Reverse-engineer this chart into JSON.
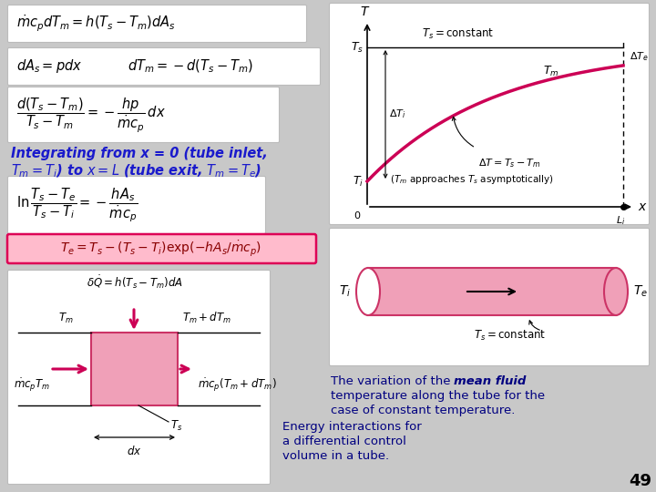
{
  "bg_color": "#c8c8c8",
  "white_box_color": "#ffffff",
  "blue_text_color": "#1a1acc",
  "dark_blue_color": "#000080",
  "pink_curve_color": "#cc0055",
  "highlight_box_facecolor": "#ffbbcc",
  "highlight_box_edge": "#dd0055",
  "tube_fill_color": "#f0a0b8",
  "tube_stroke_color": "#cc3366",
  "page_number": "49",
  "formula1": "$\\dot{m}c_p dT_m = h(T_s - T_m)dA_s$",
  "formula2a": "$dA_s = pdx$",
  "formula2b": "$dT_m = -d(T_s - T_m)$",
  "formula3": "$\\dfrac{d(T_s - T_m)}{T_s - T_m} = -\\dfrac{hp}{\\dot{m}c_p}\\,dx$",
  "formula4": "$\\ln\\dfrac{T_s - T_e}{T_s - T_i} = -\\dfrac{hA_s}{\\dot{m}c_p}$",
  "formula5": "$T_e = T_s - (T_s - T_i)\\exp(-hA_s/\\dot{m}c_p)$",
  "cv_formula": "$\\delta\\dot{Q} = h(T_s - T_m)dA$",
  "integrate_line1": "Integrating from x = 0 (tube inlet,",
  "integrate_line2": "$T_m =  T_i$) to $x = L$ (tube exit, $T_m = T_e$)",
  "caption_var1": "The variation of the ",
  "caption_var2": "mean fluid",
  "caption_var3": "temperature along the tube for the",
  "caption_var4": "case of constant temperature.",
  "caption_energy1": "Energy interactions for",
  "caption_energy2": "a differential control",
  "caption_energy3": "volume in a tube."
}
